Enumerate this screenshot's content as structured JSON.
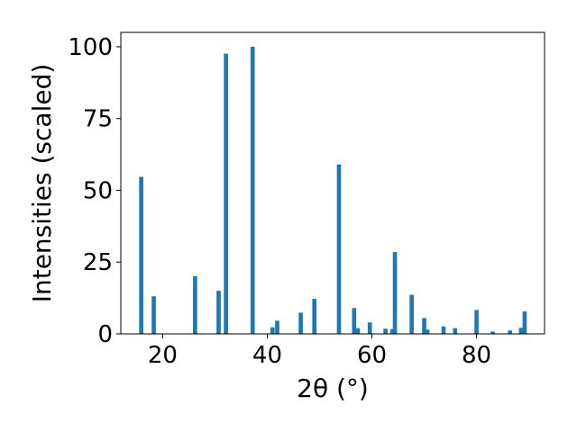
{
  "chart_data": {
    "type": "bar",
    "title": "",
    "xlabel": "2θ (°)",
    "ylabel": "Intensities (scaled)",
    "xlim": [
      12,
      93
    ],
    "ylim": [
      0,
      105
    ],
    "grid": false,
    "bar_color": "#1f77b4",
    "bar_width": 0.8,
    "xticks": [
      20,
      40,
      60,
      80
    ],
    "yticks": [
      0,
      25,
      50,
      75,
      100
    ],
    "x": [
      15.9,
      18.3,
      26.2,
      30.7,
      32.1,
      37.2,
      41.0,
      41.9,
      46.4,
      49.0,
      53.7,
      56.6,
      57.3,
      59.6,
      62.6,
      63.9,
      64.4,
      67.6,
      70.0,
      70.6,
      73.7,
      75.9,
      80.0,
      83.1,
      86.4,
      88.5,
      88.9,
      89.2
    ],
    "y": [
      54.7,
      13.1,
      20.1,
      15.0,
      97.6,
      100.0,
      2.3,
      4.6,
      7.4,
      12.2,
      59.0,
      9.0,
      2.0,
      4.0,
      1.8,
      1.7,
      28.5,
      13.6,
      5.5,
      1.5,
      2.6,
      2.0,
      8.3,
      0.8,
      1.2,
      2.1,
      2.1,
      7.8
    ]
  }
}
